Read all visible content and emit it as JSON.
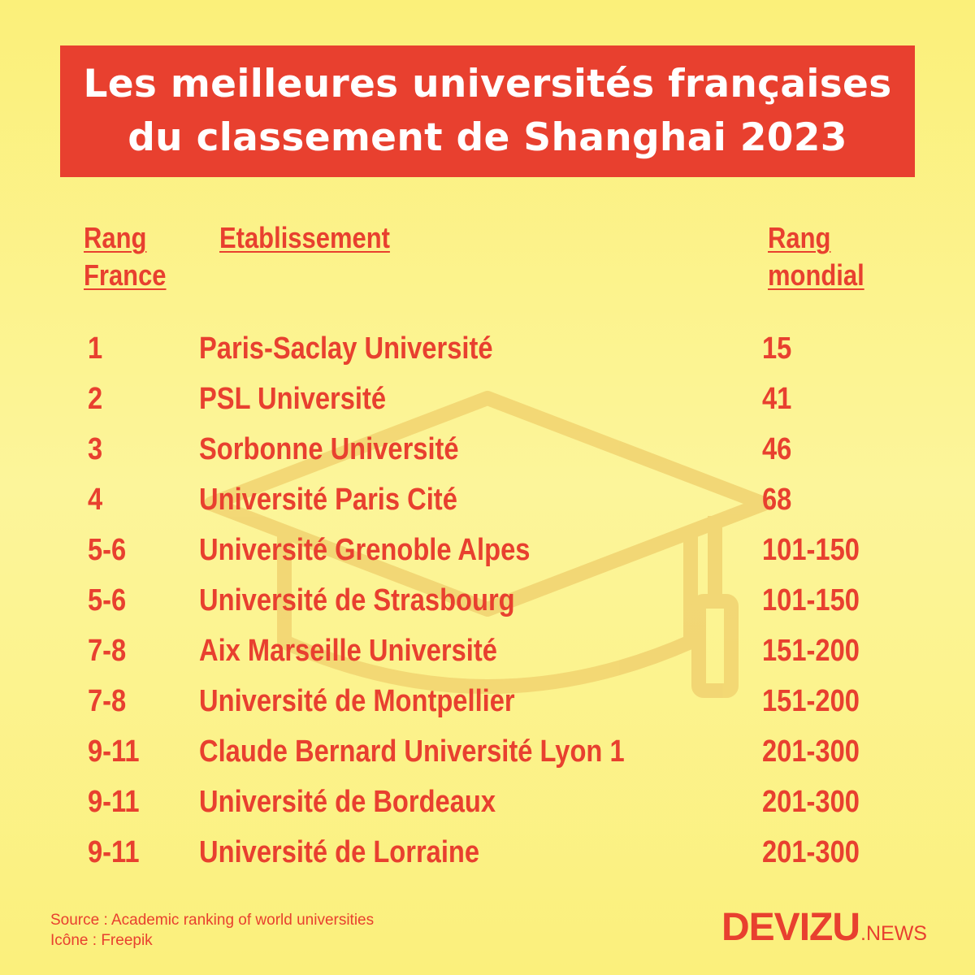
{
  "title": {
    "line1": "Les meilleures universités françaises",
    "line2": "du classement de Shanghai 2023"
  },
  "headers": {
    "rank_france": [
      "Rang",
      "France"
    ],
    "institution": "Etablissement",
    "rank_world": [
      "Rang",
      "mondial"
    ]
  },
  "rows": [
    {
      "rank": "1",
      "name": "Paris-Saclay Université",
      "world": "15"
    },
    {
      "rank": "2",
      "name": "PSL Université",
      "world": "41"
    },
    {
      "rank": "3",
      "name": "Sorbonne Université",
      "world": "46"
    },
    {
      "rank": "4",
      "name": "Université Paris Cité",
      "world": "68"
    },
    {
      "rank": "5-6",
      "name": "Université Grenoble Alpes",
      "world": "101-150"
    },
    {
      "rank": "5-6",
      "name": "Université de Strasbourg",
      "world": "101-150"
    },
    {
      "rank": "7-8",
      "name": "Aix Marseille Université",
      "world": "151-200"
    },
    {
      "rank": "7-8",
      "name": "Université de Montpellier",
      "world": "151-200"
    },
    {
      "rank": "9-11",
      "name": "Claude Bernard Université Lyon 1",
      "world": "201-300"
    },
    {
      "rank": "9-11",
      "name": "Université de Bordeaux",
      "world": "201-300"
    },
    {
      "rank": "9-11",
      "name": "Université de Lorraine",
      "world": "201-300"
    }
  ],
  "footer": {
    "source": "Source : Academic ranking of world universities",
    "icon_credit": "Icône : Freepik",
    "logo_main": "DEVIZU",
    "logo_sub": ".NEWS"
  },
  "colors": {
    "accent": "#e8402f",
    "background": "#fcf38c",
    "banner_text": "#ffffff"
  },
  "icons": [
    "graduation-cap-icon"
  ]
}
